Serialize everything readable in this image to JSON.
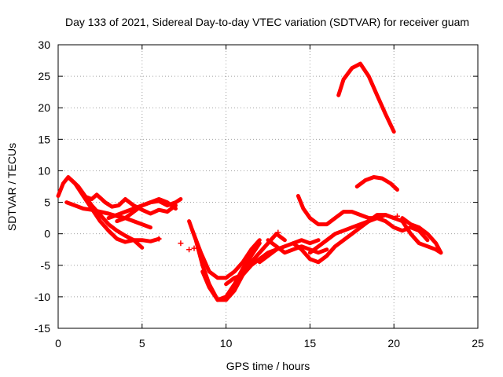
{
  "chart_data": {
    "type": "scatter",
    "title": "Day 133 of 2021, Sidereal Day-to-day VTEC variation (SDTVAR) for receiver guam",
    "xlabel": "GPS time / hours",
    "ylabel": "SDTVAR / TECUs",
    "xlim": [
      0,
      25
    ],
    "ylim": [
      -15,
      30
    ],
    "xticks": [
      "0",
      "5",
      "10",
      "15",
      "20",
      "25"
    ],
    "yticks": [
      "-15",
      "-10",
      "-5",
      "0",
      "5",
      "10",
      "15",
      "20",
      "25",
      "30"
    ],
    "grid": true,
    "marker": "+",
    "color": "#ff0000",
    "series": [
      {
        "name": "track-a",
        "x": [
          0.0,
          0.3,
          0.6,
          1.0,
          1.5,
          2.0,
          2.5,
          3.0,
          3.5,
          4.0,
          4.5,
          5.0,
          5.5,
          6.0
        ],
        "y": [
          6.0,
          8.0,
          9.0,
          8.0,
          6.0,
          4.0,
          2.0,
          0.5,
          -0.8,
          -1.3,
          -1.0,
          -1.0,
          -1.2,
          -0.8
        ]
      },
      {
        "name": "track-b",
        "x": [
          0.5,
          1.0,
          1.5,
          2.0,
          2.5,
          3.0,
          3.5,
          4.0,
          4.5,
          5.0,
          5.5
        ],
        "y": [
          5.0,
          4.5,
          4.0,
          3.8,
          3.5,
          3.2,
          2.8,
          2.5,
          2.0,
          1.5,
          1.0
        ]
      },
      {
        "name": "track-c",
        "x": [
          0.8,
          1.2,
          1.6,
          2.0,
          2.5,
          3.0,
          3.5,
          4.0,
          4.5,
          5.0
        ],
        "y": [
          8.5,
          7.5,
          6.0,
          4.5,
          3.0,
          1.5,
          0.5,
          -0.3,
          -1.0,
          -2.2
        ]
      },
      {
        "name": "track-d",
        "x": [
          1.5,
          2.0,
          2.3,
          2.8,
          3.2,
          3.6,
          4.0,
          4.5,
          5.0,
          5.5,
          6.0,
          6.5,
          7.0
        ],
        "y": [
          6.0,
          5.5,
          6.2,
          5.0,
          4.3,
          4.5,
          5.5,
          4.5,
          3.8,
          3.2,
          3.8,
          3.5,
          4.5
        ]
      },
      {
        "name": "track-e",
        "x": [
          3.0,
          3.5,
          4.0,
          4.5,
          5.0,
          5.5,
          6.0,
          6.5,
          7.0,
          7.3
        ],
        "y": [
          2.5,
          3.0,
          3.5,
          4.0,
          4.5,
          5.0,
          5.2,
          4.5,
          5.0,
          5.5
        ]
      },
      {
        "name": "track-f",
        "x": [
          3.5,
          4.0,
          4.5,
          5.0,
          5.5,
          6.0,
          6.5,
          7.0
        ],
        "y": [
          2.0,
          2.5,
          3.5,
          4.5,
          5.0,
          5.5,
          5.0,
          4.0
        ]
      },
      {
        "name": "track-g",
        "x": [
          7.8,
          8.2,
          8.6,
          9.0,
          9.5,
          10.0,
          10.5,
          11.0,
          11.5,
          12.0,
          12.5,
          13.0,
          13.5
        ],
        "y": [
          2.0,
          -1.0,
          -5.0,
          -8.0,
          -10.5,
          -10.5,
          -9.0,
          -6.5,
          -4.5,
          -3.0,
          -1.5,
          0.0,
          -1.0
        ]
      },
      {
        "name": "track-h",
        "x": [
          8.0,
          8.5,
          9.0,
          9.5,
          10.0,
          10.5,
          11.0,
          11.5,
          12.0
        ],
        "y": [
          0.5,
          -3.0,
          -6.0,
          -7.0,
          -7.0,
          -6.0,
          -4.5,
          -2.5,
          -1.0
        ]
      },
      {
        "name": "track-i",
        "x": [
          8.6,
          9.0,
          9.5,
          10.0,
          10.5,
          11.0,
          11.5,
          12.0
        ],
        "y": [
          -6.0,
          -8.5,
          -10.5,
          -10.0,
          -8.0,
          -5.5,
          -3.5,
          -1.5
        ]
      },
      {
        "name": "track-j",
        "x": [
          10.0,
          10.5,
          11.0,
          11.5,
          12.0,
          12.5,
          13.0
        ],
        "y": [
          -8.0,
          -7.0,
          -6.5,
          -5.0,
          -4.0,
          -3.0,
          -2.5
        ]
      },
      {
        "name": "track-k",
        "x": [
          12.0,
          12.5,
          13.0,
          13.5,
          14.0,
          14.5,
          15.0,
          15.5
        ],
        "y": [
          -4.5,
          -3.5,
          -2.5,
          -2.0,
          -1.5,
          -1.0,
          -1.5,
          -1.0
        ]
      },
      {
        "name": "track-l",
        "x": [
          12.5,
          13.0,
          13.5,
          14.0,
          14.5,
          15.0,
          15.5,
          16.0
        ],
        "y": [
          -1.0,
          -2.0,
          -3.0,
          -2.5,
          -2.0,
          -2.5,
          -3.0,
          -2.5
        ]
      },
      {
        "name": "track-m",
        "x": [
          14.3,
          14.6,
          15.0,
          15.5,
          16.0,
          16.5,
          17.0,
          17.5,
          18.0,
          18.5,
          19.0,
          19.5,
          20.0
        ],
        "y": [
          6.0,
          4.0,
          2.5,
          1.5,
          1.5,
          2.5,
          3.5,
          3.5,
          3.0,
          2.5,
          2.5,
          3.0,
          2.5
        ]
      },
      {
        "name": "track-n",
        "x": [
          14.0,
          14.5,
          15.0,
          15.5,
          16.0,
          16.5,
          17.0,
          17.5,
          18.0,
          18.5,
          19.0,
          19.5,
          20.0,
          20.5,
          21.0,
          21.5,
          22.0,
          22.5,
          22.8
        ],
        "y": [
          -1.5,
          -2.5,
          -4.0,
          -4.5,
          -3.5,
          -2.0,
          -1.0,
          0.0,
          1.0,
          2.0,
          3.0,
          3.0,
          2.5,
          2.0,
          0.0,
          -1.5,
          -2.0,
          -2.5,
          -3.0
        ]
      },
      {
        "name": "track-o",
        "x": [
          15.0,
          15.5,
          16.0,
          16.5,
          17.0,
          17.5,
          18.0,
          18.5,
          19.0,
          19.5,
          20.0,
          20.5,
          21.0,
          21.5,
          22.0
        ],
        "y": [
          -3.0,
          -2.0,
          -1.0,
          0.0,
          0.5,
          1.0,
          1.5,
          2.0,
          2.5,
          2.0,
          1.0,
          0.5,
          1.0,
          0.5,
          -1.0
        ]
      },
      {
        "name": "track-p",
        "x": [
          16.7,
          17.0,
          17.5,
          18.0,
          18.5,
          19.0,
          19.5,
          20.0
        ],
        "y": [
          22.0,
          24.5,
          26.3,
          27.0,
          25.0,
          22.0,
          19.0,
          16.2
        ]
      },
      {
        "name": "track-q",
        "x": [
          17.8,
          18.3,
          18.8,
          19.3,
          19.8,
          20.2
        ],
        "y": [
          7.5,
          8.5,
          9.0,
          8.8,
          8.0,
          7.0
        ]
      },
      {
        "name": "track-r",
        "x": [
          20.5,
          21.0,
          21.5,
          22.0,
          22.5,
          22.8
        ],
        "y": [
          2.5,
          1.5,
          1.0,
          0.0,
          -1.5,
          -3.0
        ]
      }
    ],
    "isolated_points": [
      {
        "x": 7.3,
        "y": -1.5
      },
      {
        "x": 7.8,
        "y": -2.5
      },
      {
        "x": 8.1,
        "y": -2.3
      },
      {
        "x": 6.0,
        "y": -0.8
      },
      {
        "x": 20.2,
        "y": 2.8
      },
      {
        "x": 13.1,
        "y": 0.2
      }
    ]
  }
}
